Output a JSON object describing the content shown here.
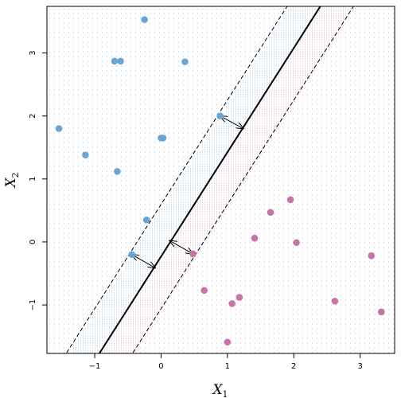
{
  "chart_data": {
    "type": "scatter",
    "title": "",
    "xlabel": "X",
    "xlabel_sub": "1",
    "ylabel": "X",
    "ylabel_sub": "2",
    "xlim": [
      -1.72,
      3.52
    ],
    "ylim": [
      -1.77,
      3.74
    ],
    "x_ticks": [
      -1,
      0,
      1,
      2,
      3
    ],
    "y_ticks": [
      -1,
      0,
      1,
      2,
      3
    ],
    "grid": false,
    "legend": "none",
    "colors": {
      "blue": "#6aa6d5",
      "pink": "#c673a6",
      "blue_grid": "#8fbad8",
      "pink_grid": "#d29bbb",
      "line": "#000000"
    },
    "hyperplane": {
      "x_at_y": [
        [
          -0.93,
          -1.77
        ],
        [
          2.4,
          3.74
        ]
      ],
      "margin_offset_x": 0.5
    },
    "series": [
      {
        "class": "blue",
        "points": [
          [
            -0.25,
            3.53
          ],
          [
            -0.7,
            2.87
          ],
          [
            -0.61,
            2.87
          ],
          [
            0.36,
            2.86
          ],
          [
            -1.54,
            1.8
          ],
          [
            0.89,
            2.0
          ],
          [
            0.0,
            1.65
          ],
          [
            0.03,
            1.65
          ],
          [
            -1.14,
            1.38
          ],
          [
            -0.66,
            1.12
          ],
          [
            -0.22,
            0.35
          ],
          [
            -0.44,
            -0.2
          ]
        ]
      },
      {
        "class": "pink",
        "points": [
          [
            1.95,
            0.67
          ],
          [
            1.65,
            0.47
          ],
          [
            1.41,
            0.06
          ],
          [
            2.04,
            -0.01
          ],
          [
            0.48,
            -0.19
          ],
          [
            3.17,
            -0.22
          ],
          [
            0.65,
            -0.77
          ],
          [
            1.18,
            -0.88
          ],
          [
            1.07,
            -0.98
          ],
          [
            2.62,
            -0.94
          ],
          [
            3.32,
            -1.11
          ],
          [
            1.0,
            -1.59
          ]
        ]
      }
    ],
    "support_arrows": [
      {
        "from": [
          0.89,
          2.0
        ],
        "to": [
          1.24,
          1.8
        ]
      },
      {
        "from": [
          -0.44,
          -0.2
        ],
        "to": [
          -0.09,
          -0.41
        ]
      },
      {
        "from": [
          0.48,
          -0.19
        ],
        "to": [
          0.13,
          0.02
        ]
      }
    ]
  }
}
